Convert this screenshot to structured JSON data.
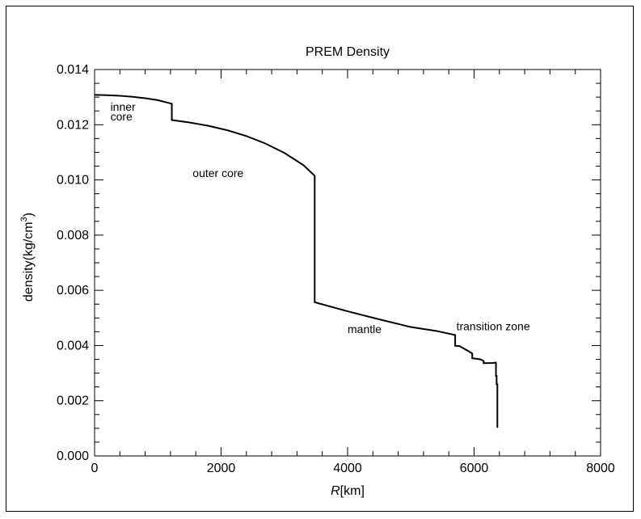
{
  "chart_data": {
    "type": "line",
    "title": "PREM Density",
    "xlabel_italic": "R",
    "xlabel_unit": "[km]",
    "ylabel_main": "density(kg/cm",
    "ylabel_sup": "3",
    "ylabel_close": ")",
    "xlim": [
      0,
      8000
    ],
    "ylim": [
      0,
      0.014
    ],
    "x_ticks": [
      0,
      2000,
      4000,
      6000,
      8000
    ],
    "x_tick_labels": [
      "0",
      "2000",
      "4000",
      "6000",
      "8000"
    ],
    "y_ticks": [
      0,
      0.002,
      0.004,
      0.006,
      0.008,
      0.01,
      0.012,
      0.014
    ],
    "y_tick_labels": [
      "0.000",
      "0.002",
      "0.004",
      "0.006",
      "0.008",
      "0.010",
      "0.012",
      "0.014"
    ],
    "grid": false,
    "series": [
      {
        "points": [
          [
            0,
            0.01308
          ],
          [
            200,
            0.01307
          ],
          [
            400,
            0.01305
          ],
          [
            600,
            0.01301
          ],
          [
            800,
            0.01296
          ],
          [
            1000,
            0.01289
          ],
          [
            1221,
            0.01276
          ],
          [
            1221,
            0.01217
          ],
          [
            1500,
            0.01208
          ],
          [
            1800,
            0.01196
          ],
          [
            2100,
            0.0118
          ],
          [
            2400,
            0.01159
          ],
          [
            2700,
            0.01132
          ],
          [
            3000,
            0.01098
          ],
          [
            3300,
            0.01054
          ],
          [
            3480,
            0.01015
          ],
          [
            3480,
            0.0099
          ],
          [
            3480,
            0.00557
          ],
          [
            4000,
            0.00524
          ],
          [
            4500,
            0.00495
          ],
          [
            5000,
            0.00467
          ],
          [
            5400,
            0.00453
          ],
          [
            5701,
            0.00438
          ],
          [
            5701,
            0.00399
          ],
          [
            5771,
            0.00398
          ],
          [
            5900,
            0.00381
          ],
          [
            5971,
            0.00371
          ],
          [
            5971,
            0.00354
          ],
          [
            6100,
            0.0035
          ],
          [
            6151,
            0.00344
          ],
          [
            6151,
            0.00336
          ],
          [
            6291,
            0.00337
          ],
          [
            6346,
            0.00338
          ],
          [
            6346,
            0.0029
          ],
          [
            6356,
            0.0029
          ],
          [
            6356,
            0.0026
          ],
          [
            6368,
            0.0026
          ],
          [
            6368,
            0.00102
          ]
        ]
      }
    ],
    "annotations": [
      {
        "text": "inner",
        "x": 250,
        "y": 0.0125
      },
      {
        "text": "core",
        "x": 250,
        "y": 0.01215
      },
      {
        "text": "outer core",
        "x": 1550,
        "y": 0.0101
      },
      {
        "text": "mantle",
        "x": 4000,
        "y": 0.00445
      },
      {
        "text": "transition zone",
        "x": 5720,
        "y": 0.00455
      }
    ]
  }
}
